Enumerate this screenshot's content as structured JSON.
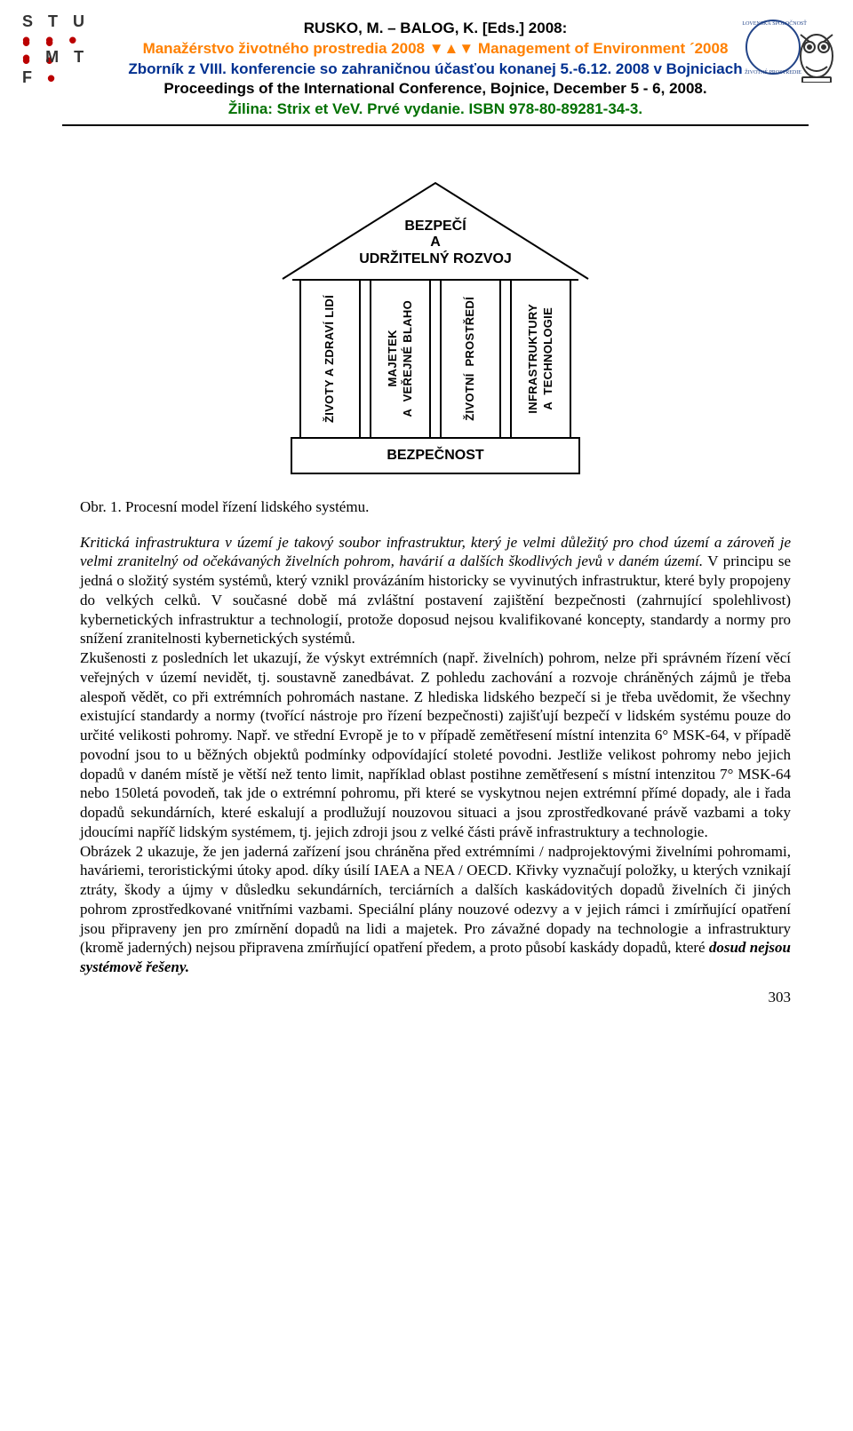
{
  "header": {
    "logo_left": {
      "rows": [
        "S T U",
        "M T F"
      ],
      "dot_color": "#a60000"
    },
    "line1_pre": "RUSKO, M. – BALOG, K. [Eds.] 2008:",
    "line1_color": "#000000",
    "line2": "Manažérstvo životného prostredia 2008 ▼▲▼  Management of Environment ´2008",
    "line2_color": "#ff8000",
    "line3": "Zborník z VIII. konferencie so zahraničnou účasťou konanej 5.-6.12. 2008 v Bojniciach",
    "line3_color": "#003090",
    "line4": "Proceedings of the International Conference, Bojnice, December 5 - 6, 2008.",
    "line4_color": "#000000",
    "line5": "Žilina: Strix et VeV. Prvé vydanie. ISBN 978-80-89281-34-3.",
    "line5_color": "#007000"
  },
  "diagram": {
    "roof_line1": "BEZPEČÍ",
    "roof_line2": "A",
    "roof_line3": "UDRŽITELNÝ ROZVOJ",
    "pillars": [
      "ŽIVOTY A ZDRAVÍ LIDÍ",
      "MAJETEK\nA  VEŘEJNÉ BLAHO",
      "ŽIVOTNÍ  PROSTŘEDÍ",
      "INFRASTRUKTURY\nA  TECHNOLOGIE"
    ],
    "base": "BEZPEČNOST",
    "stroke": "#000000",
    "font": "Arial",
    "roof_width": 360,
    "roof_height": 112
  },
  "caption": "Obr. 1. Procesní model řízení lidského systému.",
  "paragraphs": [
    "Kritická infrastruktura v území je takový soubor infrastruktur, který je velmi důležitý pro chod území a zároveň je velmi zranitelný od očekávaných živelních pohrom, havárií a dalších škodlivých jevů v daném území. V principu se jedná o složitý systém systémů, který vznikl provázáním historicky se vyvinutých infrastruktur, které byly propojeny do velkých celků. V současné době má zvláštní postavení zajištění bezpečnosti (zahrnující spolehlivost) kybernetických infrastruktur a technologií, protože doposud nejsou kvalifikované koncepty, standardy a normy pro snížení zranitelnosti kybernetických systémů.",
    "Zkušenosti z posledních let ukazují, že výskyt extrémních (např. živelních) pohrom, nelze při správném řízení věcí veřejných v území nevidět, tj. soustavně zanedbávat. Z pohledu zachování a rozvoje chráněných zájmů  je třeba alespoň vědět, co při extrémních pohromách nastane. Z hlediska lidského bezpečí si je třeba uvědomit, že všechny existující standardy a normy (tvořící nástroje pro řízení bezpečnosti) zajišťují bezpečí v lidském systému pouze do určité velikosti pohromy. Např. ve střední Evropě je to v případě zemětřesení místní intenzita 6° MSK-64, v případě povodní jsou to u běžných objektů podmínky odpovídající stoleté povodni. Jestliže velikost pohromy nebo jejich dopadů v daném místě je větší než tento limit, například  oblast postihne zemětřesení s místní intenzitou 7° MSK-64 nebo 150letá povodeň, tak jde o extrémní pohromu, při které se vyskytnou nejen extrémní přímé dopady, ale i řada dopadů sekundárních, které eskalují a prodlužují nouzovou situaci a jsou zprostředkované právě vazbami a toky jdoucími napříč lidským systémem, tj. jejich zdroji jsou z velké části právě infrastruktury a technologie.",
    "Obrázek 2 ukazuje, že jen jaderná zařízení jsou chráněna před extrémními / nadprojektovými živelními pohromami, haváriemi, teroristickými útoky apod. díky úsilí IAEA a NEA / OECD. Křivky vyznačují položky, u kterých vznikají ztráty, škody a újmy v důsledku sekundárních, terciárních a dalších kaskádovitých dopadů živelních či jiných pohrom zprostředkované vnitřními vazbami. Speciální plány nouzové odezvy a v jejich rámci i zmírňující opatření jsou připraveny jen pro zmírnění dopadů na lidi a majetek. Pro závažné dopady na technologie a infrastruktury (kromě jaderných) nejsou připravena zmírňující opatření předem, a proto působí kaskády dopadů, které dosud nejsou systémově řešeny."
  ],
  "italic_tail_from": 2,
  "page_number": "303"
}
